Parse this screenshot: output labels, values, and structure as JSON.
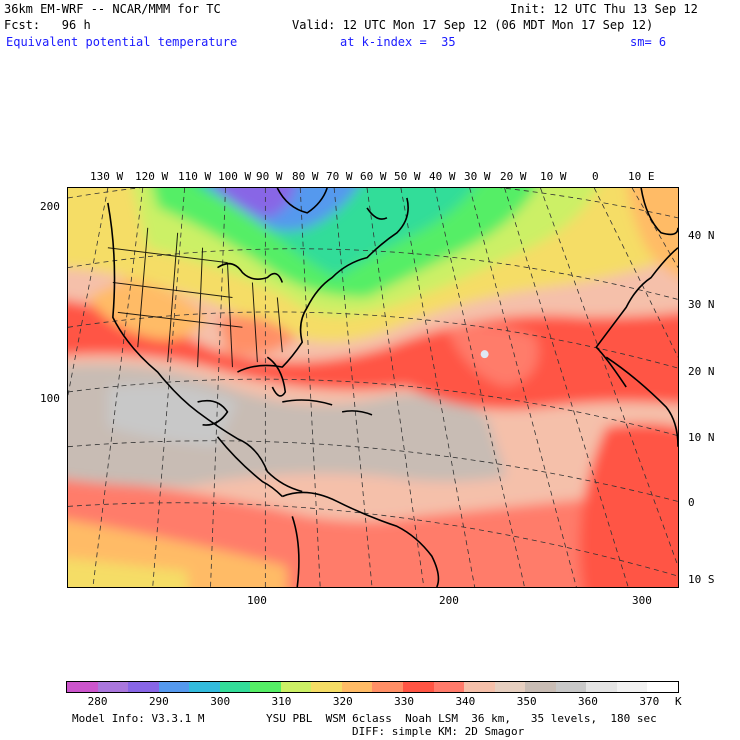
{
  "header": {
    "model": "36km EM-WRF -- NCAR/MMM for TC",
    "init": "Init: 12 UTC Thu 13 Sep 12",
    "fcst": "Fcst:   96 h",
    "valid": "Valid: 12 UTC Mon 17 Sep 12 (06 MDT Mon 17 Sep 12)",
    "field": "Equivalent potential temperature",
    "level": "at k-index =  35",
    "smooth": "sm= 6"
  },
  "top_longitudes": [
    "130 W",
    "120 W",
    "110 W",
    "100 W",
    "90 W",
    "80 W",
    "70 W",
    "60 W",
    "50 W",
    "40 W",
    "30 W",
    "20 W",
    "10 W",
    "0",
    "10 E"
  ],
  "right_latitudes": [
    "40 N",
    "30 N",
    "20 N",
    "10 N",
    "0",
    "10 S"
  ],
  "left_grid_ticks": [
    "200",
    "100"
  ],
  "bottom_grid_ticks": [
    "100",
    "200",
    "300"
  ],
  "colorbar": {
    "colors": [
      "#cc55cc",
      "#aa77dd",
      "#8866e6",
      "#5599ee",
      "#33bbdd",
      "#33dd99",
      "#55ee66",
      "#ccf066",
      "#f5dd66",
      "#ffbb66",
      "#ff8f66",
      "#ff5544",
      "#ff7b6b",
      "#f5c0aa",
      "#e6cfc0",
      "#c8bcb4",
      "#c8c8c8",
      "#e4e4e4",
      "#f2f2f2",
      "#ffffff"
    ],
    "labels": [
      "280",
      "290",
      "300",
      "310",
      "320",
      "330",
      "340",
      "350",
      "360",
      "370",
      "K"
    ]
  },
  "footer": {
    "line1_left": "Model Info: V3.3.1 M",
    "line1_right": "YSU PBL  WSM 6class  Noah LSM  36 km,   35 levels,  180 sec",
    "line2": "DIFF: simple KM: 2D Smagor"
  }
}
